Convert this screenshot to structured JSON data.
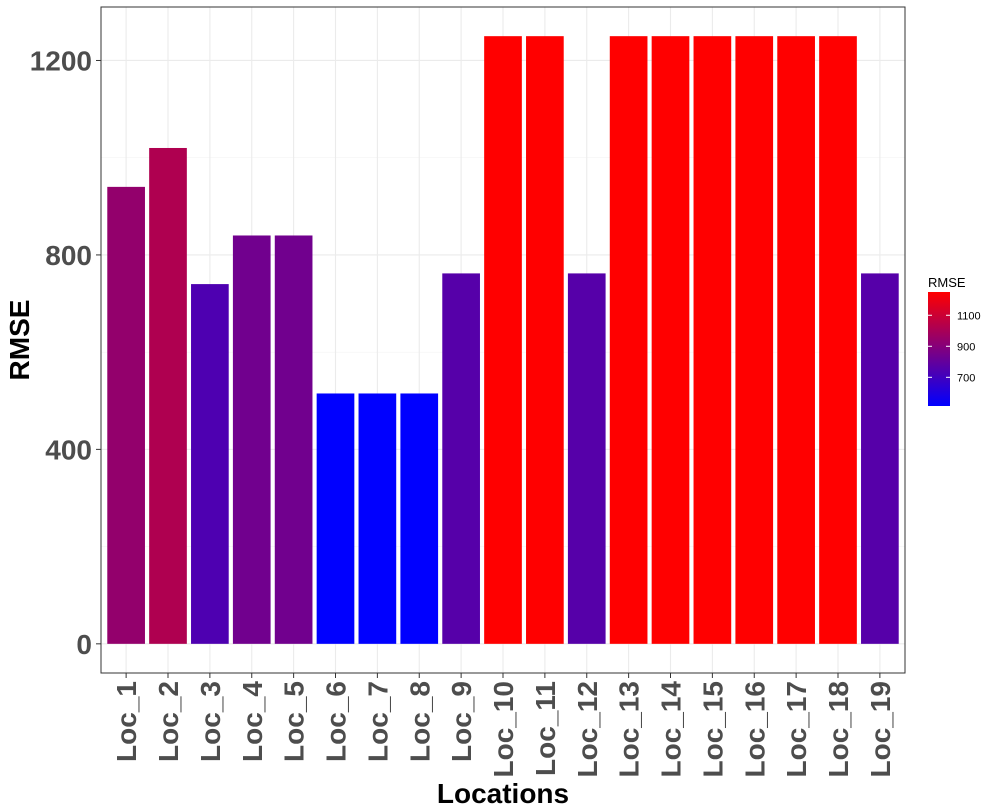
{
  "chart_data": {
    "type": "bar",
    "xlabel": "Locations",
    "ylabel": "RMSE",
    "categories": [
      "Loc_1",
      "Loc_2",
      "Loc_3",
      "Loc_4",
      "Loc_5",
      "Loc_6",
      "Loc_7",
      "Loc_8",
      "Loc_9",
      "Loc_10",
      "Loc_11",
      "Loc_12",
      "Loc_13",
      "Loc_14",
      "Loc_15",
      "Loc_16",
      "Loc_17",
      "Loc_18",
      "Loc_19"
    ],
    "values": [
      940,
      1020,
      740,
      840,
      840,
      515,
      515,
      515,
      762,
      1250,
      1250,
      762,
      1250,
      1250,
      1250,
      1250,
      1250,
      1250,
      762
    ],
    "ylim": [
      -60,
      1310
    ],
    "yticks": [
      0,
      400,
      800,
      1200
    ],
    "grid": true,
    "color_scale": {
      "title": "RMSE",
      "low_color": "#0000ff",
      "high_color": "#ff0000",
      "range": [
        515,
        1250
      ],
      "breaks": [
        700,
        900,
        1100
      ]
    },
    "legend_position": "right"
  }
}
